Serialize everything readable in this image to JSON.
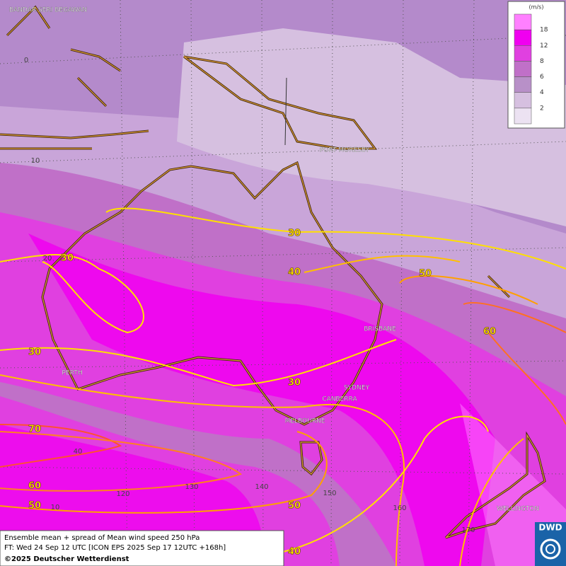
{
  "cities": [
    "BANDAR SERI BEGAWAN",
    "PORT MORESBY",
    "BRISBANE",
    "PERTH",
    "SYDNEY",
    "CANBERRA",
    "MELBOURNE",
    "WELLINGTON"
  ],
  "grid_labels": [
    "0",
    "10",
    "20",
    "40",
    "120",
    "130",
    "140",
    "150",
    "160",
    "170",
    "10"
  ],
  "contour_labels": [
    "30",
    "30",
    "30",
    "30",
    "40",
    "50",
    "60",
    "70",
    "60",
    "50",
    "50",
    "40"
  ],
  "legend": {
    "unit": "(m/s)",
    "levels": [
      {
        "label": "18",
        "color": "#ff80ff"
      },
      {
        "label": "12",
        "color": "#f000f0"
      },
      {
        "label": "8",
        "color": "#e040e0"
      },
      {
        "label": "6",
        "color": "#c070c8"
      },
      {
        "label": "4",
        "color": "#b890c8"
      },
      {
        "label": "2",
        "color": "#d6c0e0"
      }
    ],
    "base_color": "#ece2f2"
  },
  "footer": {
    "line1": "Ensemble mean + spread of Mean wind speed 250 hPa",
    "line2": "FT: Wed 24 Sep 12 UTC [ICON EPS 2025 Sep 17 12UTC +168h]",
    "line3": "©2025 Deutscher Wetterdienst"
  },
  "logo": "DWD"
}
